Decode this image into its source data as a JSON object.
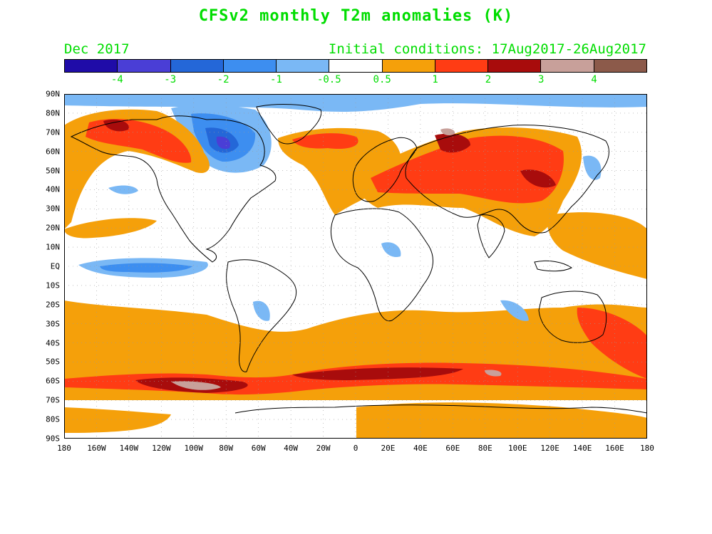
{
  "title": "CFSv2 monthly T2m anomalies (K)",
  "valid_month": "Dec 2017",
  "initial_conditions": "Initial conditions: 17Aug2017-26Aug2017",
  "text_color": "#00dd00",
  "colorbar": {
    "colors": [
      "#1f0ca8",
      "#4a3ed6",
      "#2467d8",
      "#3d8ef0",
      "#7ab8f5",
      "#ffffff",
      "#f5a00a",
      "#ff3c14",
      "#a80c0c",
      "#c8a09a",
      "#8c5a4a"
    ],
    "labels": [
      "-4",
      "-3",
      "-2",
      "-1",
      "-0.5",
      "0.5",
      "1",
      "2",
      "3",
      "4"
    ]
  },
  "map": {
    "lat_labels": [
      "90N",
      "80N",
      "70N",
      "60N",
      "50N",
      "40N",
      "30N",
      "20N",
      "10N",
      "EQ",
      "10S",
      "20S",
      "30S",
      "40S",
      "50S",
      "60S",
      "70S",
      "80S",
      "90S"
    ],
    "lon_labels": [
      "180",
      "160W",
      "140W",
      "120W",
      "100W",
      "80W",
      "60W",
      "40W",
      "20W",
      "0",
      "20E",
      "40E",
      "60E",
      "80E",
      "100E",
      "120E",
      "140E",
      "160E",
      "180"
    ]
  }
}
